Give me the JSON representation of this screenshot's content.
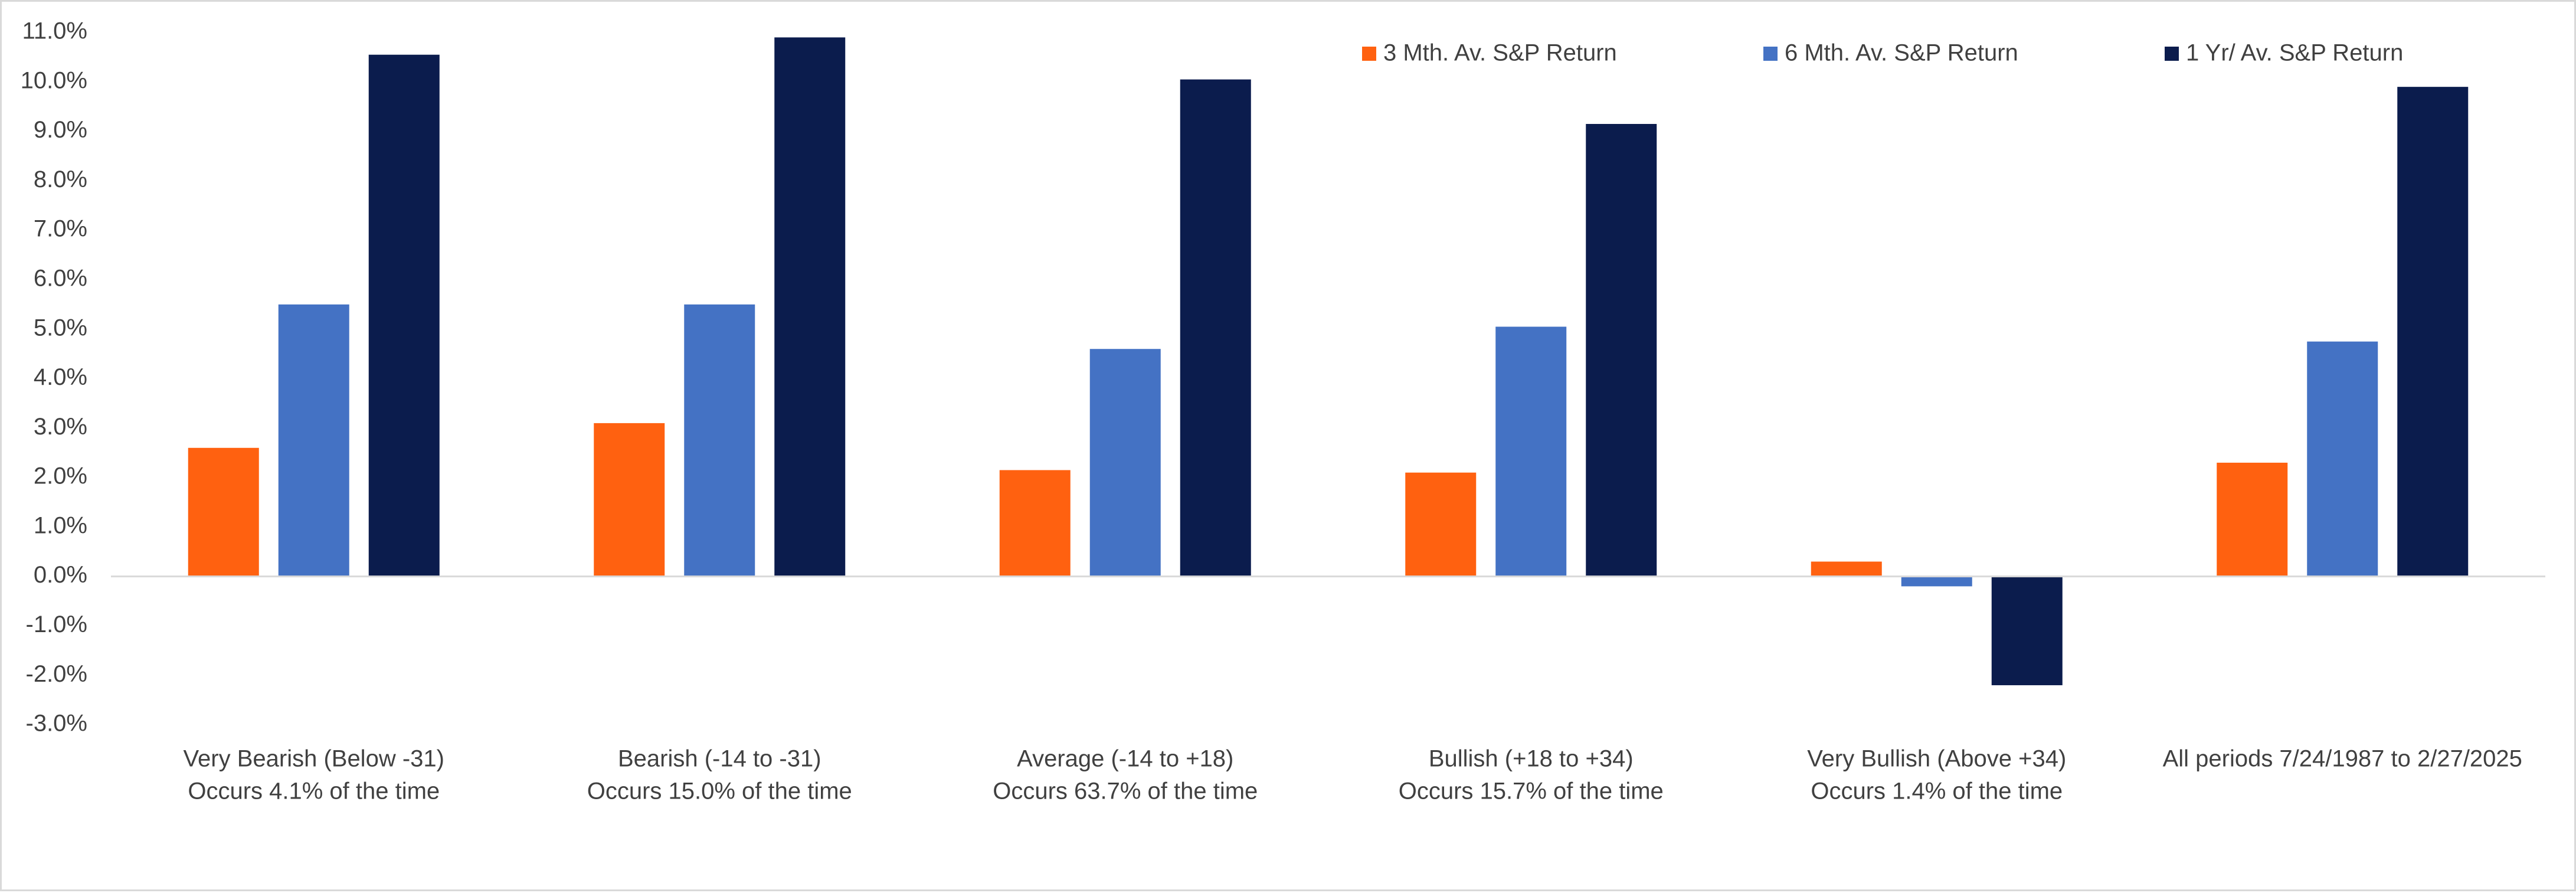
{
  "chart_data": {
    "type": "bar",
    "title": "",
    "xlabel": "",
    "ylabel": "",
    "ylim": [
      -3.0,
      11.0
    ],
    "y_ticks": [
      11.0,
      10.0,
      9.0,
      8.0,
      7.0,
      6.0,
      5.0,
      4.0,
      3.0,
      2.0,
      1.0,
      0.0,
      -1.0,
      -2.0,
      -3.0
    ],
    "y_tick_labels": [
      "11.0%",
      "10.0%",
      "9.0%",
      "8.0%",
      "7.0%",
      "6.0%",
      "5.0%",
      "4.0%",
      "3.0%",
      "2.0%",
      "1.0%",
      "0.0%",
      "-1.0%",
      "-2.0%",
      "-3.0%"
    ],
    "grid": false,
    "legend_position": "top-right",
    "categories": [
      [
        "Very Bearish (Below -31)",
        "Occurs 4.1% of the time"
      ],
      [
        "Bearish (-14 to -31)",
        "Occurs 15.0% of the time"
      ],
      [
        "Average (-14 to +18)",
        "Occurs 63.7% of the time"
      ],
      [
        "Bullish (+18 to +34)",
        "Occurs 15.7% of the time"
      ],
      [
        "Very Bullish (Above +34)",
        "Occurs 1.4% of the time"
      ],
      [
        "All periods 7/24/1987 to 2/27/2025"
      ]
    ],
    "series": [
      {
        "name": "3 Mth. Av. S&P Return",
        "color": "#ff6110",
        "values": [
          2.6,
          3.1,
          2.15,
          2.1,
          0.3,
          2.3
        ]
      },
      {
        "name": "6 Mth. Av. S&P Return",
        "color": "#4472c4",
        "values": [
          5.5,
          5.5,
          4.6,
          5.05,
          -0.2,
          4.75
        ]
      },
      {
        "name": "1 Yr/ Av. S&P Return",
        "color": "#0b1c4d",
        "values": [
          10.55,
          10.9,
          10.05,
          9.15,
          -2.2,
          9.9
        ]
      }
    ]
  }
}
